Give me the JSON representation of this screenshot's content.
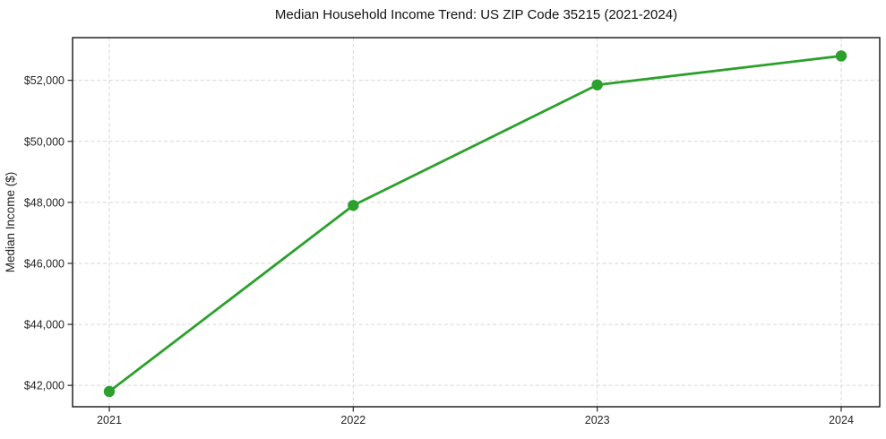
{
  "chart_data": {
    "type": "line",
    "title": "Median Household Income Trend: US ZIP Code 35215 (2021-2024)",
    "xlabel": "",
    "ylabel": "Median Income ($)",
    "categories": [
      "2021",
      "2022",
      "2023",
      "2024"
    ],
    "values": [
      41800,
      47900,
      51850,
      52800
    ],
    "ytick_values": [
      42000,
      44000,
      46000,
      48000,
      50000,
      52000
    ],
    "ytick_labels": [
      "$42,000",
      "$44,000",
      "$46,000",
      "$48,000",
      "$50,000",
      "$52,000"
    ],
    "ylim": [
      41300,
      53400
    ],
    "grid": "dashed-both-axes",
    "legend": "none",
    "marker": "circle",
    "colors": {
      "line": "#2ca02c",
      "marker": "#2ca02c",
      "grid": "#d6d6d6",
      "axis": "#000000",
      "tick": "#262626",
      "text": "#262626",
      "background": "#ffffff"
    }
  }
}
